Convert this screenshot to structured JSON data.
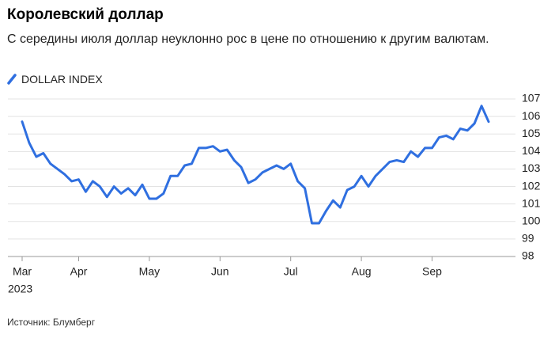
{
  "chart_data": {
    "type": "line",
    "title": "Королевский доллар",
    "subtitle": "С середины июля доллар неуклонно рос в цене по отношению к другим валютам.",
    "source": "Источник: Блумберг",
    "year_label": "2023",
    "categories": [
      "Mar",
      null,
      null,
      null,
      null,
      null,
      null,
      null,
      "Apr",
      null,
      null,
      null,
      null,
      null,
      null,
      null,
      null,
      null,
      "May",
      null,
      null,
      null,
      null,
      null,
      null,
      null,
      null,
      null,
      "Jun",
      null,
      null,
      null,
      null,
      null,
      null,
      null,
      null,
      null,
      "Jul",
      null,
      null,
      null,
      null,
      null,
      null,
      null,
      null,
      null,
      "Aug",
      null,
      null,
      null,
      null,
      null,
      null,
      null,
      null,
      null,
      "Sep",
      null,
      null,
      null,
      null,
      null,
      null,
      null,
      null
    ],
    "series": [
      {
        "name": "DOLLAR INDEX",
        "color": "#2f6fe0",
        "values": [
          105.7,
          104.5,
          103.7,
          103.9,
          103.3,
          103.0,
          102.7,
          102.3,
          102.4,
          101.7,
          102.3,
          102.0,
          101.4,
          102.0,
          101.6,
          101.9,
          101.5,
          102.1,
          101.3,
          101.3,
          101.6,
          102.6,
          102.6,
          103.2,
          103.3,
          104.2,
          104.2,
          104.3,
          104.0,
          104.1,
          103.5,
          103.1,
          102.2,
          102.4,
          102.8,
          103.0,
          103.2,
          103.0,
          103.3,
          102.3,
          101.9,
          99.9,
          99.9,
          100.6,
          101.2,
          100.8,
          101.8,
          102.0,
          102.6,
          102.0,
          102.6,
          103.0,
          103.4,
          103.5,
          103.4,
          104.0,
          103.7,
          104.2,
          104.2,
          104.8,
          104.9,
          104.7,
          105.3,
          105.2,
          105.6,
          106.6,
          105.7
        ]
      }
    ],
    "ylim": [
      98,
      107
    ],
    "yticks": [
      98,
      99,
      100,
      101,
      102,
      103,
      104,
      105,
      106,
      107
    ],
    "grid": true
  }
}
